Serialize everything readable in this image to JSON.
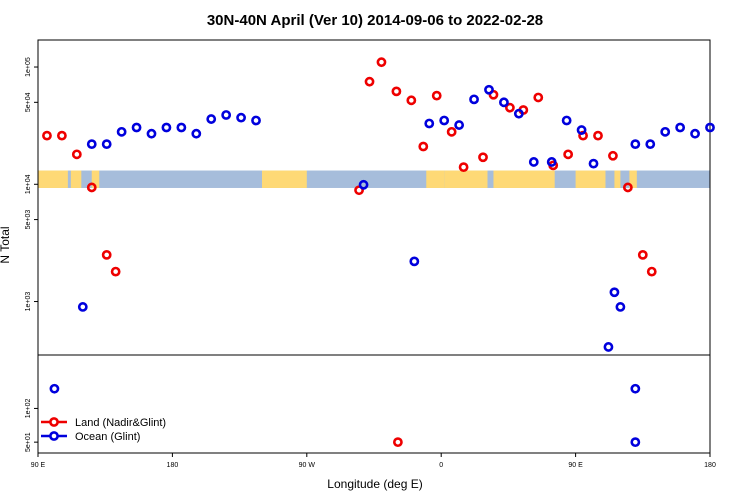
{
  "chart_data": {
    "type": "scatter",
    "title": "30N-40N April (Ver 10)   2014-09-06 to 2022-02-28",
    "xlabel": "Longitude (deg E)",
    "ylabel": "N Total",
    "xlim": [
      90,
      540
    ],
    "x_scale_note": "unwrapped longitude, repeats after 360",
    "x_ticks": [
      {
        "value": 90,
        "label": "90 E"
      },
      {
        "value": 180,
        "label": "180"
      },
      {
        "value": 270,
        "label": "90 W"
      },
      {
        "value": 360,
        "label": "0"
      },
      {
        "value": 450,
        "label": "90 E"
      },
      {
        "value": 540,
        "label": "180"
      }
    ],
    "y_scale": "log",
    "y_ticks_main": [
      {
        "value": 1000,
        "label": "1e+03"
      },
      {
        "value": 5000,
        "label": "5e+03"
      },
      {
        "value": 10000,
        "label": "1e+04"
      },
      {
        "value": 50000,
        "label": "5e+04"
      },
      {
        "value": 100000,
        "label": "1e+05"
      }
    ],
    "y_ticks_lower": [
      {
        "value": 50,
        "label": "5e+01"
      },
      {
        "value": 100,
        "label": "1e+02"
      }
    ],
    "ylim_main": [
      350,
      170000
    ],
    "ylim_lower": [
      40,
      300
    ],
    "grid": false,
    "legend": {
      "position": "bottom-left",
      "entries": [
        {
          "name": "Land (Nadir&Glint)",
          "color": "#ee0000"
        },
        {
          "name": "Ocean (Glint)",
          "color": "#0000dd"
        }
      ]
    },
    "map_strip": {
      "y_range": [
        9300,
        13100
      ],
      "ocean_color": "#a6bddb",
      "land_color": "#fed976"
    },
    "series": [
      {
        "name": "Land (Nadir&Glint)",
        "color": "#ee0000",
        "points": [
          [
            96,
            26000
          ],
          [
            106,
            26000
          ],
          [
            116,
            18000
          ],
          [
            126,
            9400
          ],
          [
            136,
            2500
          ],
          [
            142,
            1800
          ],
          [
            305,
            8900
          ],
          [
            312,
            75000
          ],
          [
            320,
            110000
          ],
          [
            330,
            62000
          ],
          [
            340,
            52000
          ],
          [
            348,
            21000
          ],
          [
            357,
            57000
          ],
          [
            367,
            28000
          ],
          [
            375,
            14000
          ],
          [
            388,
            17000
          ],
          [
            395,
            58000
          ],
          [
            406,
            45000
          ],
          [
            415,
            43000
          ],
          [
            425,
            55000
          ],
          [
            435,
            14500
          ],
          [
            445,
            18000
          ],
          [
            455,
            26000
          ],
          [
            465,
            26000
          ],
          [
            475,
            17500
          ],
          [
            485,
            9400
          ],
          [
            495,
            2500
          ],
          [
            501,
            1800
          ],
          [
            331,
            50
          ]
        ]
      },
      {
        "name": "Ocean (Glint)",
        "color": "#0000dd",
        "points": [
          [
            120,
            900
          ],
          [
            126,
            22000
          ],
          [
            136,
            22000
          ],
          [
            146,
            28000
          ],
          [
            156,
            30500
          ],
          [
            166,
            27000
          ],
          [
            176,
            30500
          ],
          [
            186,
            30500
          ],
          [
            196,
            27000
          ],
          [
            206,
            36000
          ],
          [
            216,
            39000
          ],
          [
            226,
            37000
          ],
          [
            236,
            35000
          ],
          [
            308,
            9900
          ],
          [
            342,
            2200
          ],
          [
            352,
            33000
          ],
          [
            362,
            35000
          ],
          [
            372,
            32000
          ],
          [
            382,
            53000
          ],
          [
            392,
            64000
          ],
          [
            402,
            50000
          ],
          [
            412,
            40000
          ],
          [
            422,
            15500
          ],
          [
            434,
            15500
          ],
          [
            444,
            35000
          ],
          [
            454,
            29000
          ],
          [
            462,
            15000
          ],
          [
            472,
            410
          ],
          [
            476,
            1200
          ],
          [
            480,
            900
          ],
          [
            490,
            22000
          ],
          [
            500,
            22000
          ],
          [
            510,
            28000
          ],
          [
            520,
            30500
          ],
          [
            530,
            27000
          ],
          [
            540,
            30500
          ],
          [
            101,
            150
          ],
          [
            490,
            150
          ],
          [
            490,
            50
          ]
        ]
      }
    ]
  }
}
